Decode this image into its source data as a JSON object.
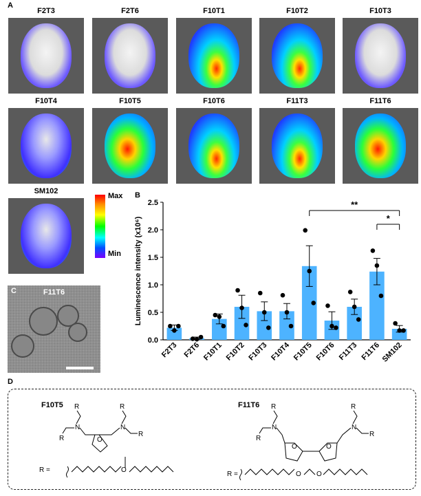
{
  "panels": {
    "a": "A",
    "b": "B",
    "c": "C",
    "d": "D"
  },
  "imaging": {
    "tiles": [
      {
        "label": "F2T3"
      },
      {
        "label": "F2T6"
      },
      {
        "label": "F10T1"
      },
      {
        "label": "F10T2"
      },
      {
        "label": "F10T3"
      },
      {
        "label": "F10T4"
      },
      {
        "label": "F10T5"
      },
      {
        "label": "F10T6"
      },
      {
        "label": "F11T3"
      },
      {
        "label": "F11T6"
      },
      {
        "label": "SM102"
      }
    ],
    "colorbar": {
      "max_label": "Max",
      "min_label": "Min"
    }
  },
  "tem": {
    "label": "F11T6"
  },
  "chart_data": {
    "type": "bar",
    "categories": [
      "F2T3",
      "F2T6",
      "F10T1",
      "F10T2",
      "F10T3",
      "F10T4",
      "F10T5",
      "F10T6",
      "F11T3",
      "F11T6",
      "SM102"
    ],
    "values": [
      0.22,
      0.03,
      0.38,
      0.6,
      0.52,
      0.52,
      1.34,
      0.35,
      0.6,
      1.24,
      0.2
    ],
    "errors": [
      0.05,
      0.02,
      0.09,
      0.21,
      0.17,
      0.14,
      0.37,
      0.16,
      0.14,
      0.24,
      0.06
    ],
    "points": [
      [
        0.25,
        0.17,
        0.25
      ],
      [
        0.02,
        0.01,
        0.05
      ],
      [
        0.45,
        0.42,
        0.25
      ],
      [
        0.9,
        0.58,
        0.27
      ],
      [
        0.85,
        0.5,
        0.22
      ],
      [
        0.81,
        0.5,
        0.25
      ],
      [
        1.99,
        1.25,
        0.67
      ],
      [
        0.62,
        0.25,
        0.22
      ],
      [
        0.87,
        0.6,
        0.37
      ],
      [
        1.62,
        1.35,
        0.8
      ],
      [
        0.3,
        0.17,
        0.17
      ]
    ],
    "ylabel": "Luminescence intensity (x10⁶)",
    "ylim": [
      0,
      2.5
    ],
    "yticks": [
      "0.0",
      "0.5",
      "1.0",
      "1.5",
      "2.0",
      "2.5"
    ],
    "bar_color": "#4db3ff",
    "significance": [
      {
        "from": "F10T5",
        "to": "SM102",
        "label": "**"
      },
      {
        "from": "F11T6",
        "to": "SM102",
        "label": "*"
      }
    ]
  },
  "chemistry": {
    "compounds": [
      {
        "name": "F10T5",
        "r_group_label": "R ="
      },
      {
        "name": "F11T6",
        "r_group_label": "R ="
      }
    ],
    "atoms": {
      "nitrogen": "N",
      "oxygen": "O",
      "r": "R"
    }
  }
}
